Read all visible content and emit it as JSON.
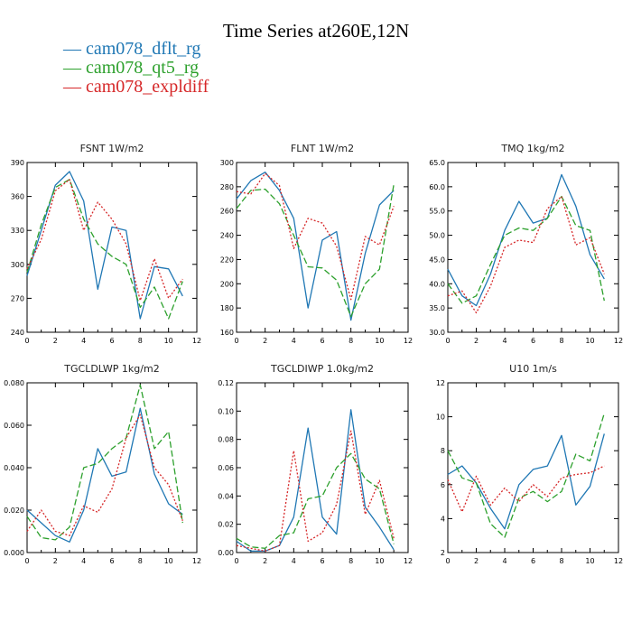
{
  "page": {
    "title": "Time Series at260E,12N"
  },
  "legend": [
    {
      "label": "— cam078_dflt_rg",
      "color": "#1f77b4",
      "dash": "solid"
    },
    {
      "label": "— cam078_qt5_rg",
      "color": "#2ca02c",
      "dash": "dashed"
    },
    {
      "label": "— cam078_expldiff",
      "color": "#d62728",
      "dash": "dotted"
    }
  ],
  "chart_data": [
    {
      "type": "line",
      "title": "FSNT   1W/m2",
      "x": [
        0,
        1,
        2,
        3,
        4,
        5,
        6,
        7,
        8,
        9,
        10,
        11
      ],
      "xlim": [
        0,
        12
      ],
      "xticks": [
        0,
        2,
        4,
        6,
        8,
        10,
        12
      ],
      "xtick_labels": [
        "0",
        "2",
        "4",
        "6",
        "8",
        "10",
        "12"
      ],
      "ylim": [
        240,
        390
      ],
      "yticks": [
        240,
        270,
        300,
        330,
        360,
        390
      ],
      "ytick_labels": [
        "240",
        "270",
        "300",
        "330",
        "360",
        "390"
      ],
      "series": [
        {
          "name": "cam078_dflt_rg",
          "color": "#1f77b4",
          "values": [
            290,
            330,
            370,
            382,
            356,
            278,
            333,
            330,
            252,
            298,
            296,
            272
          ]
        },
        {
          "name": "cam078_qt5_rg",
          "color": "#2ca02c",
          "values": [
            293,
            335,
            368,
            375,
            340,
            318,
            307,
            300,
            262,
            280,
            252,
            285
          ]
        },
        {
          "name": "cam078_expldiff",
          "color": "#d62728",
          "values": [
            296,
            322,
            365,
            375,
            330,
            355,
            340,
            318,
            268,
            305,
            270,
            287
          ]
        }
      ]
    },
    {
      "type": "line",
      "title": "FLNT   1W/m2",
      "x": [
        0,
        1,
        2,
        3,
        4,
        5,
        6,
        7,
        8,
        9,
        10,
        11
      ],
      "xlim": [
        0,
        12
      ],
      "xticks": [
        0,
        2,
        4,
        6,
        8,
        10,
        12
      ],
      "xtick_labels": [
        "0",
        "2",
        "4",
        "6",
        "8",
        "10",
        "12"
      ],
      "ylim": [
        160,
        300
      ],
      "yticks": [
        160,
        180,
        200,
        220,
        240,
        260,
        280,
        300
      ],
      "ytick_labels": [
        "160",
        "180",
        "200",
        "220",
        "240",
        "260",
        "280",
        "300"
      ],
      "series": [
        {
          "name": "cam078_dflt_rg",
          "color": "#1f77b4",
          "values": [
            270,
            285,
            292,
            277,
            254,
            180,
            236,
            243,
            170,
            225,
            265,
            277
          ]
        },
        {
          "name": "cam078_qt5_rg",
          "color": "#2ca02c",
          "values": [
            262,
            277,
            278,
            266,
            240,
            214,
            213,
            203,
            173,
            200,
            212,
            282
          ]
        },
        {
          "name": "cam078_expldiff",
          "color": "#d62728",
          "values": [
            276,
            274,
            291,
            281,
            229,
            254,
            250,
            231,
            187,
            239,
            232,
            264
          ]
        }
      ]
    },
    {
      "type": "line",
      "title": "TMQ   1kg/m2",
      "x": [
        0,
        1,
        2,
        3,
        4,
        5,
        6,
        7,
        8,
        9,
        10,
        11
      ],
      "xlim": [
        0,
        12
      ],
      "xticks": [
        0,
        2,
        4,
        6,
        8,
        10,
        12
      ],
      "xtick_labels": [
        "0",
        "2",
        "4",
        "6",
        "8",
        "10",
        "12"
      ],
      "ylim": [
        30,
        65
      ],
      "yticks": [
        30,
        35,
        40,
        45,
        50,
        55,
        60,
        65
      ],
      "ytick_labels": [
        "30.0",
        "35.0",
        "40.0",
        "45.0",
        "50.0",
        "55.0",
        "60.0",
        "65.0"
      ],
      "series": [
        {
          "name": "cam078_dflt_rg",
          "color": "#1f77b4",
          "values": [
            43.0,
            37.5,
            35.5,
            42.0,
            51.0,
            57.0,
            52.5,
            53.5,
            62.5,
            56.0,
            46.0,
            41.0
          ]
        },
        {
          "name": "cam078_qt5_rg",
          "color": "#2ca02c",
          "values": [
            40.0,
            36.0,
            37.5,
            44.0,
            50.0,
            51.5,
            51.0,
            53.5,
            58.0,
            52.0,
            51.0,
            36.5
          ]
        },
        {
          "name": "cam078_expldiff",
          "color": "#d62728",
          "values": [
            37.5,
            38.5,
            34.0,
            39.5,
            47.5,
            49.0,
            48.5,
            55.5,
            58.0,
            48.0,
            49.5,
            42.0
          ]
        }
      ]
    },
    {
      "type": "line",
      "title": "TGCLDLWP   1kg/m2",
      "x": [
        0,
        1,
        2,
        3,
        4,
        5,
        6,
        7,
        8,
        9,
        10,
        11
      ],
      "xlim": [
        0,
        12
      ],
      "xticks": [
        0,
        2,
        4,
        6,
        8,
        10,
        12
      ],
      "xtick_labels": [
        "0",
        "2",
        "4",
        "6",
        "8",
        "10",
        "12"
      ],
      "ylim": [
        0,
        0.08
      ],
      "yticks": [
        0,
        0.02,
        0.04,
        0.06,
        0.08
      ],
      "ytick_labels": [
        "0.000",
        "0.020",
        "0.040",
        "0.060",
        "0.080"
      ],
      "series": [
        {
          "name": "cam078_dflt_rg",
          "color": "#1f77b4",
          "values": [
            0.02,
            0.014,
            0.008,
            0.005,
            0.02,
            0.049,
            0.036,
            0.038,
            0.068,
            0.037,
            0.023,
            0.018
          ]
        },
        {
          "name": "cam078_qt5_rg",
          "color": "#2ca02c",
          "values": [
            0.017,
            0.007,
            0.006,
            0.012,
            0.04,
            0.042,
            0.049,
            0.054,
            0.079,
            0.049,
            0.057,
            0.014
          ]
        },
        {
          "name": "cam078_expldiff",
          "color": "#d62728",
          "values": [
            0.01,
            0.02,
            0.01,
            0.008,
            0.022,
            0.019,
            0.03,
            0.054,
            0.065,
            0.04,
            0.032,
            0.015
          ]
        }
      ]
    },
    {
      "type": "line",
      "title": "TGCLDIWP   1.0kg/m2",
      "x": [
        0,
        1,
        2,
        3,
        4,
        5,
        6,
        7,
        8,
        9,
        10,
        11
      ],
      "xlim": [
        0,
        12
      ],
      "xticks": [
        0,
        2,
        4,
        6,
        8,
        10,
        12
      ],
      "xtick_labels": [
        "0",
        "2",
        "4",
        "6",
        "8",
        "10",
        "12"
      ],
      "ylim": [
        0,
        0.12
      ],
      "yticks": [
        0,
        0.02,
        0.04,
        0.06,
        0.08,
        0.1,
        0.12
      ],
      "ytick_labels": [
        "0.00",
        "0.02",
        "0.04",
        "0.06",
        "0.08",
        "0.10",
        "0.12"
      ],
      "series": [
        {
          "name": "cam078_dflt_rg",
          "color": "#1f77b4",
          "values": [
            0.008,
            0.001,
            0.001,
            0.005,
            0.025,
            0.088,
            0.025,
            0.013,
            0.101,
            0.032,
            0.018,
            0.002
          ]
        },
        {
          "name": "cam078_qt5_rg",
          "color": "#2ca02c",
          "values": [
            0.01,
            0.004,
            0.003,
            0.012,
            0.014,
            0.038,
            0.04,
            0.06,
            0.07,
            0.052,
            0.045,
            0.006
          ]
        },
        {
          "name": "cam078_expldiff",
          "color": "#d62728",
          "values": [
            0.005,
            0.003,
            0.001,
            0.005,
            0.072,
            0.008,
            0.014,
            0.034,
            0.086,
            0.027,
            0.051,
            0.01
          ]
        }
      ]
    },
    {
      "type": "line",
      "title": "U10   1m/s",
      "x": [
        0,
        1,
        2,
        3,
        4,
        5,
        6,
        7,
        8,
        9,
        10,
        11
      ],
      "xlim": [
        0,
        12
      ],
      "xticks": [
        0,
        2,
        4,
        6,
        8,
        10,
        12
      ],
      "xtick_labels": [
        "0",
        "2",
        "4",
        "6",
        "8",
        "10",
        "12"
      ],
      "ylim": [
        2,
        12
      ],
      "yticks": [
        2,
        4,
        6,
        8,
        10,
        12
      ],
      "ytick_labels": [
        "2",
        "4",
        "6",
        "8",
        "10",
        "12"
      ],
      "series": [
        {
          "name": "cam078_dflt_rg",
          "color": "#1f77b4",
          "values": [
            6.6,
            7.1,
            6.1,
            4.6,
            3.4,
            6.0,
            6.9,
            7.1,
            8.9,
            4.8,
            5.9,
            9.0
          ]
        },
        {
          "name": "cam078_qt5_rg",
          "color": "#2ca02c",
          "values": [
            8.0,
            6.4,
            6.1,
            3.7,
            2.9,
            5.2,
            5.6,
            5.0,
            5.6,
            7.8,
            7.4,
            10.2
          ]
        },
        {
          "name": "cam078_expldiff",
          "color": "#d62728",
          "values": [
            6.3,
            4.4,
            6.5,
            4.8,
            5.8,
            5.0,
            6.0,
            5.3,
            6.4,
            6.6,
            6.7,
            7.1
          ]
        }
      ]
    }
  ]
}
